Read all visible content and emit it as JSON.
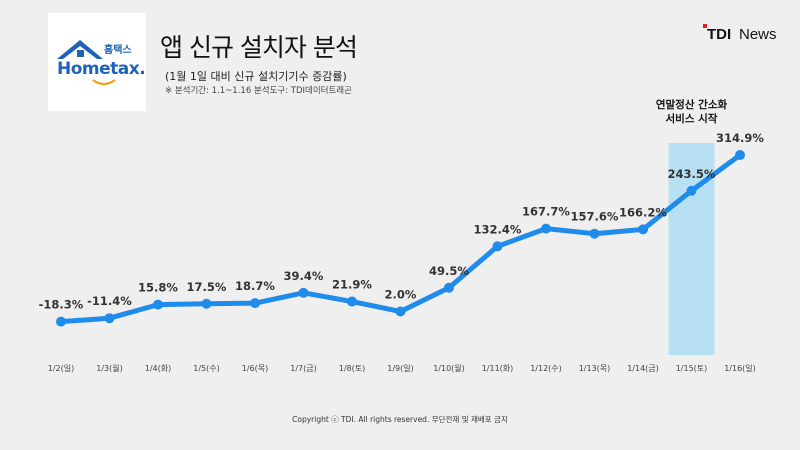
{
  "header": {
    "title": "앱 신규 설치자 분석",
    "subtitle": "(1월 1일 대비 신규 설치기기수 증감률)",
    "note": "※ 분석기간: 1.1~1.16   분석도구: TDI데이터트래곤"
  },
  "logo": {
    "korean": "홈택스",
    "word": "Hometax."
  },
  "brand": {
    "tdi": "TDI",
    "news": "News"
  },
  "annotation": {
    "line1": "연말정산 간소화",
    "line2": "서비스 시작"
  },
  "copyright": "Copyright ⓒ TDI. All rights reserved. 무단전재 및 재배포 금지",
  "colors": {
    "line": "#1f8cec",
    "highlight": "#b7e0f3",
    "brand_red": "#e2211c"
  },
  "chart_data": {
    "type": "line",
    "categories": [
      "1/2(일)",
      "1/3(월)",
      "1/4(화)",
      "1/5(수)",
      "1/6(목)",
      "1/7(금)",
      "1/8(토)",
      "1/9(일)",
      "1/10(월)",
      "1/11(화)",
      "1/12(수)",
      "1/13(목)",
      "1/14(금)",
      "1/15(토)",
      "1/16(일)"
    ],
    "values": [
      -18.3,
      -11.4,
      15.8,
      17.5,
      18.7,
      39.4,
      21.9,
      2.0,
      49.5,
      132.4,
      167.7,
      157.6,
      166.2,
      243.5,
      314.9
    ],
    "labels": [
      "-18.3%",
      "-11.4%",
      "15.8%",
      "17.5%",
      "18.7%",
      "39.4%",
      "21.9%",
      "2.0%",
      "49.5%",
      "132.4%",
      "167.7%",
      "157.6%",
      "166.2%",
      "243.5%",
      "314.9%"
    ],
    "highlight_category": "1/15(토)",
    "unit": "%"
  }
}
